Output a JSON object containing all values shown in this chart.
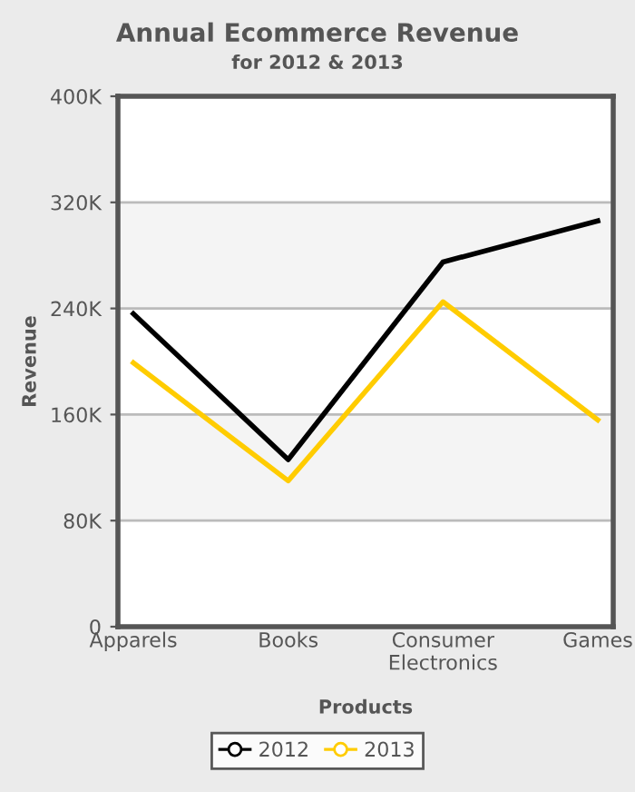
{
  "chart_data": {
    "type": "line",
    "title": "Annual Ecommerce Revenue",
    "subtitle": "for 2012 & 2013",
    "xlabel": "Products",
    "ylabel": "Revenue",
    "categories": [
      "Apparels",
      "Books",
      "Consumer Electronics",
      "Games"
    ],
    "series": [
      {
        "name": "2012",
        "color": "#000000",
        "values": [
          236000,
          126000,
          275000,
          306000
        ]
      },
      {
        "name": "2013",
        "color": "#ffcc00",
        "values": [
          199000,
          110000,
          245000,
          156000
        ]
      }
    ],
    "ylim": [
      0,
      400000
    ],
    "yticks": [
      {
        "value": 0,
        "label": "0"
      },
      {
        "value": 80000,
        "label": "80K"
      },
      {
        "value": 160000,
        "label": "160K"
      },
      {
        "value": 240000,
        "label": "240K"
      },
      {
        "value": 320000,
        "label": "320K"
      },
      {
        "value": 400000,
        "label": "400K"
      }
    ],
    "grid": "y",
    "legend": "bottom",
    "marker": "none",
    "line_style": "solid"
  }
}
